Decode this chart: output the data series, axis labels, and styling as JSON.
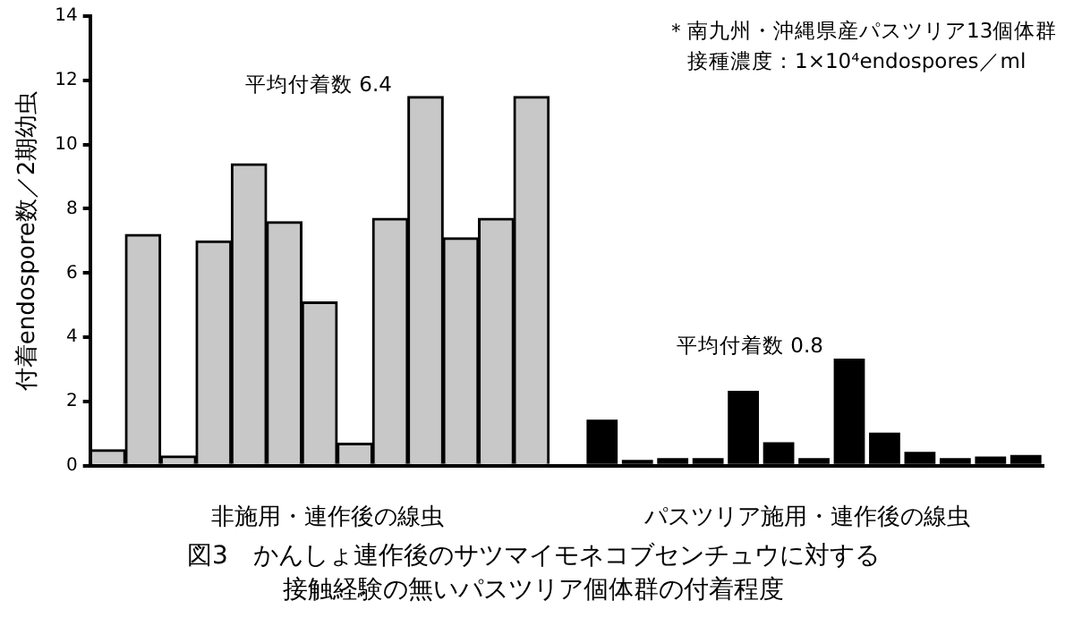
{
  "chart_data": {
    "type": "bar",
    "title": "図3　かんしょ連作後のサツマイモネコブセンチュウに対する接触経験の無いパスツリア個体群の付着程度",
    "ylabel": "付着endospore数／2期幼虫",
    "categories": [
      null,
      null,
      null,
      null,
      null,
      null,
      null,
      null,
      null,
      null,
      null,
      null,
      null,
      null,
      null,
      null,
      null,
      null,
      null,
      null,
      null,
      null,
      null,
      null,
      null,
      null,
      null
    ],
    "stacked": true,
    "series": [
      {
        "color": "#c8c8c8",
        "values": [
          0.5,
          7.2,
          0.3,
          7.0,
          9.4,
          7.6,
          5.1,
          0.7,
          7.7,
          11.5,
          7.1,
          7.7,
          11.5,
          null,
          null,
          null,
          null,
          null,
          null,
          null,
          null,
          null,
          null,
          null,
          null,
          null,
          null
        ]
      },
      {
        "color": "#000000",
        "values": [
          null,
          null,
          null,
          null,
          null,
          null,
          null,
          null,
          null,
          null,
          null,
          null,
          null,
          null,
          1.5,
          0.25,
          0.3,
          0.3,
          2.4,
          0.8,
          0.3,
          3.4,
          1.1,
          0.5,
          0.3,
          0.35,
          0.4
        ]
      }
    ],
    "ylim": [
      0,
      14
    ],
    "yticks": [
      0,
      2,
      4,
      6,
      8,
      10,
      12,
      14
    ],
    "annotations": [
      "非施用・連作後の線虫",
      "パスツリア施用・連作後の線虫",
      "＊南九州・沖縄県産パスツリア13個体群",
      "接種濃度：1×10⁴endospores／ml",
      "平均付着数 6.4",
      "平均付着数 0.8"
    ],
    "grid": false,
    "legend": false
  }
}
